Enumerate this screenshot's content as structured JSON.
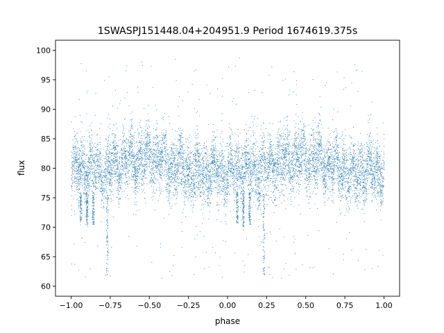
{
  "chart_data": {
    "type": "scatter",
    "title": "1SWASPJ151448.04+204951.9 Period 1674619.375s",
    "xlabel": "phase",
    "ylabel": "flux",
    "xlim": [
      -1.1,
      1.1
    ],
    "ylim": [
      58.3,
      101.7
    ],
    "xticks": [
      -1.0,
      -0.75,
      -0.5,
      -0.25,
      0.0,
      0.25,
      0.5,
      0.75,
      1.0
    ],
    "xtick_labels": [
      "−1.00",
      "−0.75",
      "−0.50",
      "−0.25",
      "0.00",
      "0.25",
      "0.50",
      "0.75",
      "1.00"
    ],
    "yticks": [
      60,
      65,
      70,
      75,
      80,
      85,
      90,
      95,
      100
    ],
    "ytick_labels": [
      "60",
      "65",
      "70",
      "75",
      "80",
      "85",
      "90",
      "95",
      "100"
    ],
    "grid": false,
    "marker_color": "#1f77b4",
    "series": [
      {
        "profile_phase": [
          -1.0,
          -0.9,
          -0.8,
          -0.7,
          -0.6,
          -0.5,
          -0.4,
          -0.3,
          -0.2,
          -0.1,
          0.0,
          0.1,
          0.2,
          0.3,
          0.4,
          0.5,
          0.6,
          0.7,
          0.8,
          0.9,
          1.0
        ],
        "profile_flux": [
          79.5,
          80.0,
          79.5,
          81.0,
          81.5,
          82.0,
          81.0,
          80.0,
          79.0,
          79.5,
          79.5,
          80.0,
          79.5,
          81.0,
          81.5,
          82.0,
          81.0,
          80.0,
          79.0,
          79.5,
          79.5
        ],
        "scatter_std": 3.3,
        "n_points": 9000,
        "dips": [
          {
            "phase": -0.94,
            "flux": 70.8
          },
          {
            "phase": -0.9,
            "flux": 70.0
          },
          {
            "phase": -0.86,
            "flux": 70.5
          },
          {
            "phase": -0.77,
            "flux": 62.0
          },
          {
            "phase": 0.06,
            "flux": 70.8
          },
          {
            "phase": 0.1,
            "flux": 70.0
          },
          {
            "phase": 0.14,
            "flux": 70.5
          },
          {
            "phase": 0.23,
            "flux": 62.0
          }
        ],
        "outlier_range": [
          61,
          99
        ]
      }
    ]
  }
}
